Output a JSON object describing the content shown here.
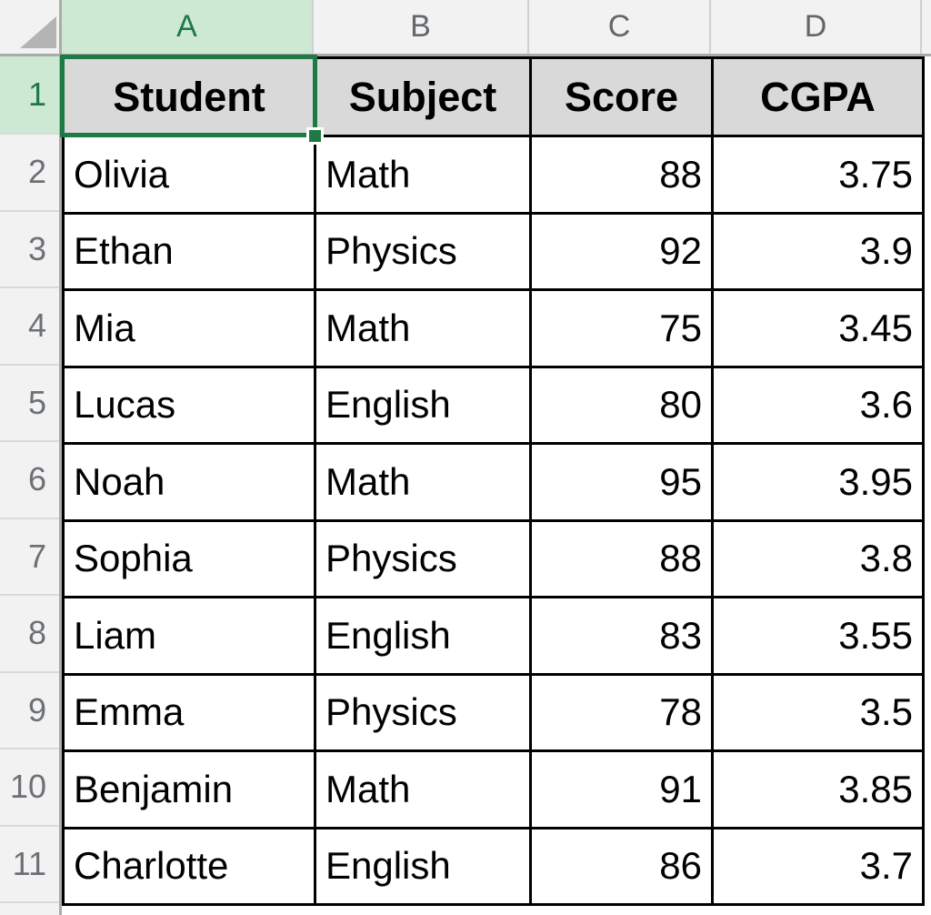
{
  "sheet": {
    "columns": [
      {
        "letter": "A",
        "selected": true
      },
      {
        "letter": "B",
        "selected": false
      },
      {
        "letter": "C",
        "selected": false
      },
      {
        "letter": "D",
        "selected": false
      }
    ],
    "header_row": {
      "number": "1",
      "labels": [
        "Student",
        "Subject",
        "Score",
        "CGPA"
      ]
    },
    "rows": [
      {
        "number": "2",
        "cells": [
          "Olivia",
          "Math",
          "88",
          "3.75"
        ]
      },
      {
        "number": "3",
        "cells": [
          "Ethan",
          "Physics",
          "92",
          "3.9"
        ]
      },
      {
        "number": "4",
        "cells": [
          "Mia",
          "Math",
          "75",
          "3.45"
        ]
      },
      {
        "number": "5",
        "cells": [
          "Lucas",
          "English",
          "80",
          "3.6"
        ]
      },
      {
        "number": "6",
        "cells": [
          "Noah",
          "Math",
          "95",
          "3.95"
        ]
      },
      {
        "number": "7",
        "cells": [
          "Sophia",
          "Physics",
          "88",
          "3.8"
        ]
      },
      {
        "number": "8",
        "cells": [
          "Liam",
          "English",
          "83",
          "3.55"
        ]
      },
      {
        "number": "9",
        "cells": [
          "Emma",
          "Physics",
          "78",
          "3.5"
        ]
      },
      {
        "number": "10",
        "cells": [
          "Benjamin",
          "Math",
          "91",
          "3.85"
        ]
      },
      {
        "number": "11",
        "cells": [
          "Charlotte",
          "English",
          "86",
          "3.7"
        ]
      }
    ],
    "selection": {
      "active_cell": "A1"
    },
    "colors": {
      "accent_green": "#1e7a45",
      "selected_header_bg": "#cde8d3",
      "header_strip_bg": "#f2f2f2",
      "header_cell_fill": "#d9d9d9",
      "grid_line": "#000000",
      "frame_line": "#ababab"
    }
  }
}
